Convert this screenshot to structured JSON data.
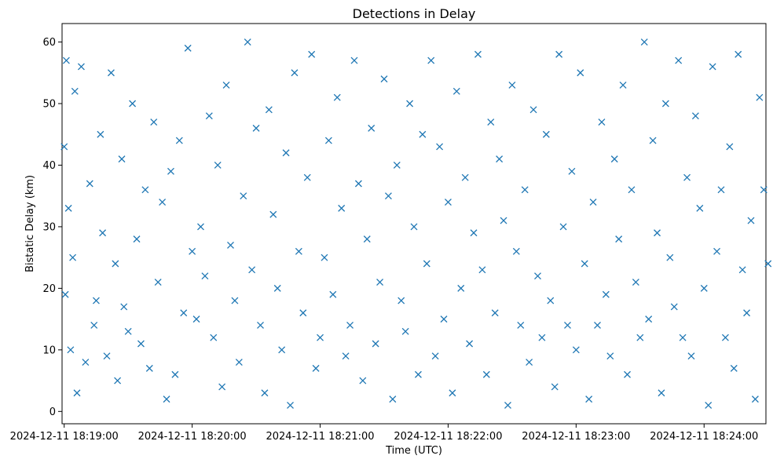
{
  "chart_data": {
    "type": "scatter",
    "title": "Detections in Delay",
    "xlabel": "Time (UTC)",
    "ylabel": "Bistatic Delay (km)",
    "marker": "x",
    "color": "#1f77b4",
    "grid": false,
    "legend": "none",
    "xlim": [
      "2024-12-11 18:18:59",
      "2024-12-11 18:24:29"
    ],
    "ylim": [
      -2,
      63
    ],
    "x_ticks": [
      "2024-12-11 18:19:00",
      "2024-12-11 18:20:00",
      "2024-12-11 18:21:00",
      "2024-12-11 18:22:00",
      "2024-12-11 18:23:00",
      "2024-12-11 18:24:00"
    ],
    "y_ticks": [
      0,
      10,
      20,
      30,
      40,
      50,
      60
    ],
    "time_start": "2024-12-11 18:19:00",
    "points_time_seconds_from_start": [
      0,
      0.5,
      1,
      2,
      3,
      4,
      5,
      6,
      8,
      10,
      12,
      14,
      15,
      17,
      18,
      20,
      22,
      24,
      25,
      27,
      28,
      30,
      32,
      34,
      36,
      38,
      40,
      42,
      44,
      46,
      48,
      50,
      52,
      54,
      56,
      58,
      60,
      62,
      64,
      66,
      68,
      70,
      72,
      74,
      76,
      78,
      80,
      82,
      84,
      86,
      88,
      90,
      92,
      94,
      96,
      98,
      100,
      102,
      104,
      106,
      108,
      110,
      112,
      114,
      116,
      118,
      120,
      122,
      124,
      126,
      128,
      130,
      132,
      134,
      136,
      138,
      140,
      142,
      144,
      146,
      148,
      150,
      152,
      154,
      156,
      158,
      160,
      162,
      164,
      166,
      168,
      170,
      172,
      174,
      176,
      178,
      180,
      182,
      184,
      186,
      188,
      190,
      192,
      194,
      196,
      198,
      200,
      202,
      204,
      206,
      208,
      210,
      212,
      214,
      216,
      218,
      220,
      222,
      224,
      226,
      228,
      230,
      232,
      234,
      236,
      238,
      240,
      242,
      244,
      246,
      248,
      250,
      252,
      254,
      256,
      258,
      260,
      262,
      264,
      266,
      268,
      270,
      272,
      274,
      276,
      278,
      280,
      282,
      284,
      286,
      288,
      290,
      292,
      294,
      296,
      298,
      300,
      302,
      304,
      306,
      308,
      310,
      312,
      314,
      316,
      318,
      320,
      322,
      324,
      326,
      328,
      330
    ],
    "points_delay_km": [
      43,
      19,
      57,
      33,
      10,
      25,
      52,
      3,
      56,
      8,
      37,
      14,
      18,
      45,
      29,
      9,
      55,
      24,
      5,
      41,
      17,
      13,
      50,
      28,
      11,
      36,
      7,
      47,
      21,
      34,
      2,
      39,
      6,
      44,
      16,
      59,
      26,
      15,
      30,
      22,
      48,
      12,
      40,
      4,
      53,
      27,
      18,
      8,
      35,
      60,
      23,
      46,
      14,
      3,
      49,
      32,
      20,
      10,
      42,
      1,
      55,
      26,
      16,
      38,
      58,
      7,
      12,
      25,
      44,
      19,
      51,
      33,
      9,
      14,
      57,
      37,
      5,
      28,
      46,
      11,
      21,
      54,
      35,
      2,
      40,
      18,
      13,
      50,
      30,
      6,
      45,
      24,
      57,
      9,
      43,
      15,
      34,
      3,
      52,
      20,
      38,
      11,
      29,
      58,
      23,
      6,
      47,
      16,
      41,
      31,
      1,
      53,
      26,
      14,
      36,
      8,
      49,
      22,
      12,
      45,
      18,
      4,
      58,
      30,
      14,
      39,
      10,
      55,
      24,
      2,
      34,
      14,
      47,
      19,
      9,
      41,
      28,
      53,
      6,
      36,
      21,
      12,
      60,
      15,
      44,
      29,
      3,
      50,
      25,
      17,
      57,
      12,
      38,
      9,
      48,
      33,
      20,
      1,
      56,
      26,
      36,
      12,
      43,
      7,
      58,
      23,
      16,
      31,
      2,
      51,
      36,
      24
    ]
  }
}
